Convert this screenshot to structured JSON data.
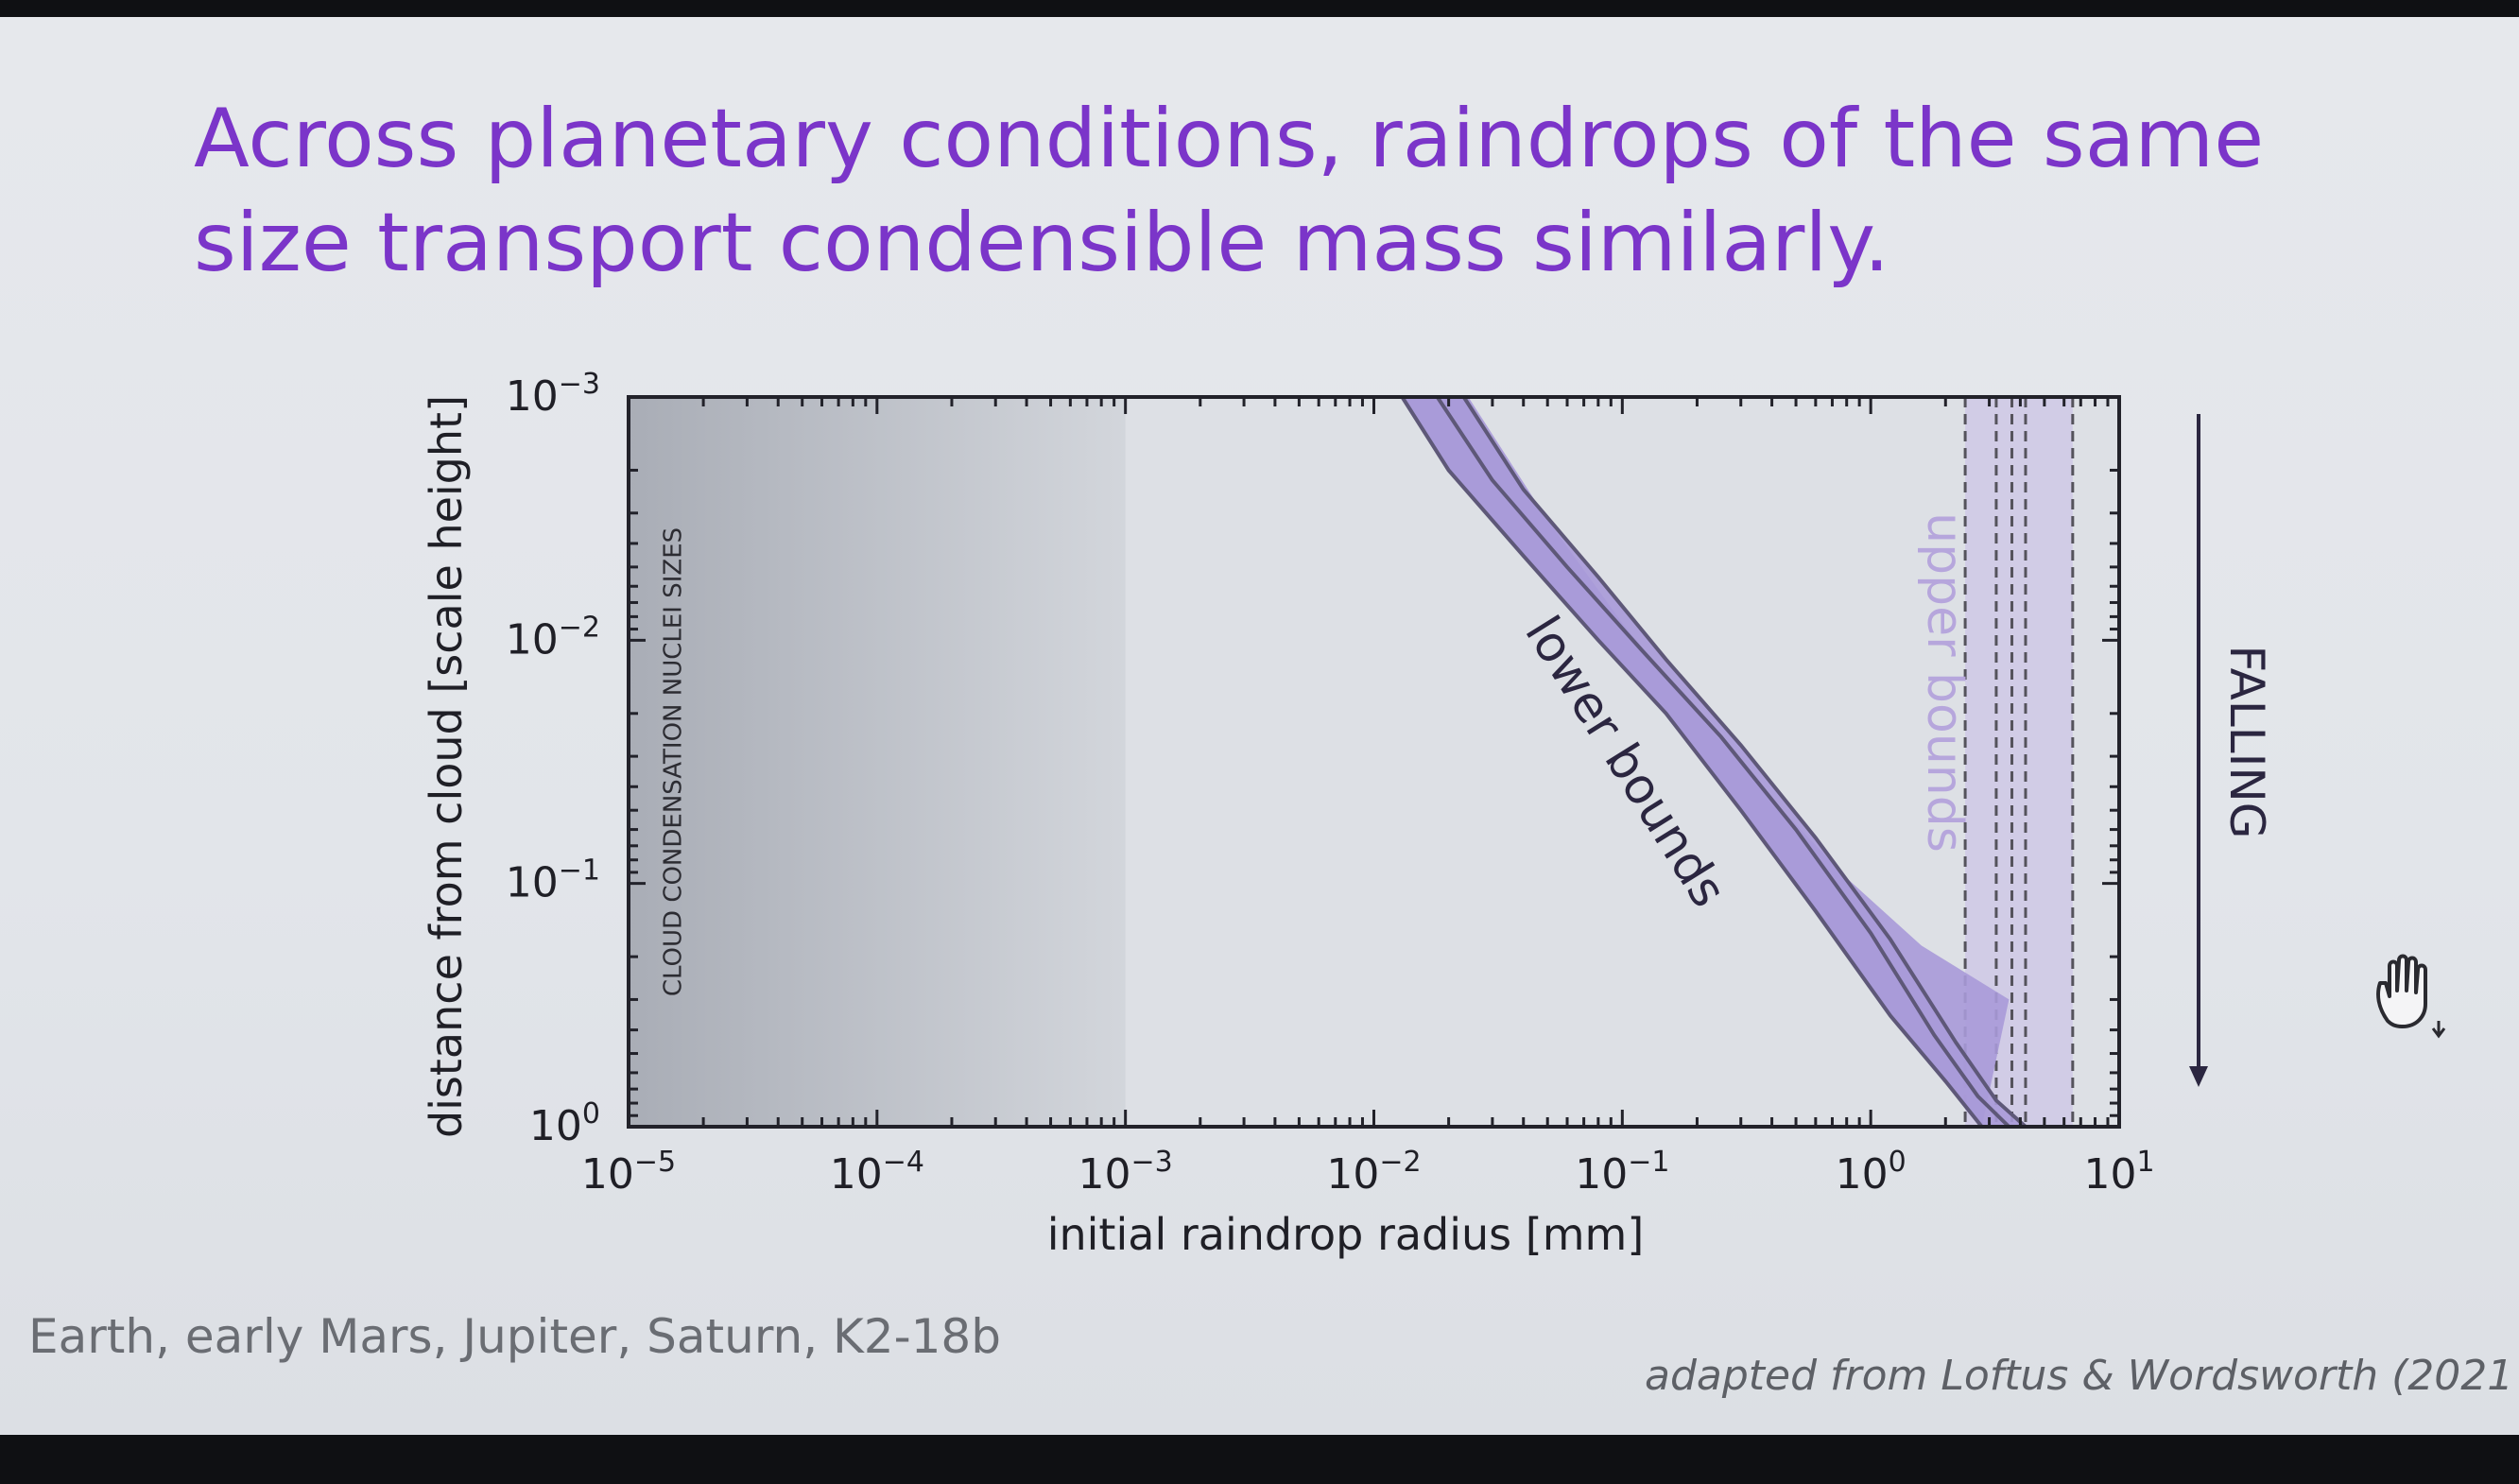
{
  "slide": {
    "title_line1": "Across planetary conditions, raindrops of the same",
    "title_line2": "size transport condensible mass similarly.",
    "planets_note": "Earth, early Mars, Jupiter, Saturn, K2-18b",
    "credit": "adapted from Loftus & Wordsworth (2021"
  },
  "chart_data": {
    "type": "area",
    "xlabel": "initial raindrop radius [mm]",
    "ylabel": "distance from cloud [scale height]",
    "x_scale": "log",
    "y_scale": "log",
    "y_inverted": true,
    "xlim": [
      1e-05,
      10
    ],
    "ylim": [
      0.001,
      1
    ],
    "x_ticks": [
      {
        "value": 1e-05,
        "base": "10",
        "exp": "−5"
      },
      {
        "value": 0.0001,
        "base": "10",
        "exp": "−4"
      },
      {
        "value": 0.001,
        "base": "10",
        "exp": "−3"
      },
      {
        "value": 0.01,
        "base": "10",
        "exp": "−2"
      },
      {
        "value": 0.1,
        "base": "10",
        "exp": "−1"
      },
      {
        "value": 1,
        "base": "10",
        "exp": "0"
      },
      {
        "value": 10,
        "base": "10",
        "exp": "1"
      }
    ],
    "y_ticks": [
      {
        "value": 0.001,
        "base": "10",
        "exp": "−3"
      },
      {
        "value": 0.01,
        "base": "10",
        "exp": "−2"
      },
      {
        "value": 0.1,
        "base": "10",
        "exp": "−1"
      },
      {
        "value": 1,
        "base": "10",
        "exp": "0"
      }
    ],
    "grid": false,
    "regions": [
      {
        "label": "CLOUD CONDENSATION NUCLEI SIZES",
        "x_range": [
          1e-05,
          0.001
        ],
        "color": "#a9adb6"
      }
    ],
    "lower_bounds": {
      "label": "lower bounds",
      "fill_color": "#a89ad8",
      "line_color": "#5e5878",
      "curves": [
        {
          "x": [
            0.013,
            0.02,
            0.04,
            0.08,
            0.15,
            0.3,
            0.6,
            1.2,
            2.0,
            2.8
          ],
          "y": [
            0.001,
            0.002,
            0.0045,
            0.01,
            0.02,
            0.05,
            0.13,
            0.35,
            0.65,
            1.0
          ]
        },
        {
          "x": [
            0.018,
            0.03,
            0.06,
            0.12,
            0.25,
            0.5,
            1.0,
            1.8,
            2.7,
            3.6
          ],
          "y": [
            0.001,
            0.0022,
            0.005,
            0.011,
            0.025,
            0.06,
            0.16,
            0.42,
            0.75,
            1.0
          ]
        },
        {
          "x": [
            0.023,
            0.04,
            0.08,
            0.15,
            0.3,
            0.6,
            1.2,
            2.2,
            3.2,
            4.2
          ],
          "y": [
            0.001,
            0.0024,
            0.0055,
            0.012,
            0.027,
            0.065,
            0.17,
            0.45,
            0.78,
            1.0
          ]
        }
      ],
      "band_upper_edge": {
        "x": [
          0.024,
          0.05,
          0.1,
          0.2,
          0.4,
          0.8,
          1.6,
          3.6
        ],
        "y": [
          0.001,
          0.0032,
          0.0085,
          0.02,
          0.045,
          0.095,
          0.18,
          0.3
        ]
      }
    },
    "upper_bounds": {
      "label": "upper bounds",
      "fill_color": "#cfc8e6",
      "x_range": [
        2.4,
        6.5
      ],
      "dashed_x": [
        2.4,
        3.2,
        3.7,
        4.2,
        6.5
      ]
    },
    "falling_arrow_label": "FALLING"
  }
}
